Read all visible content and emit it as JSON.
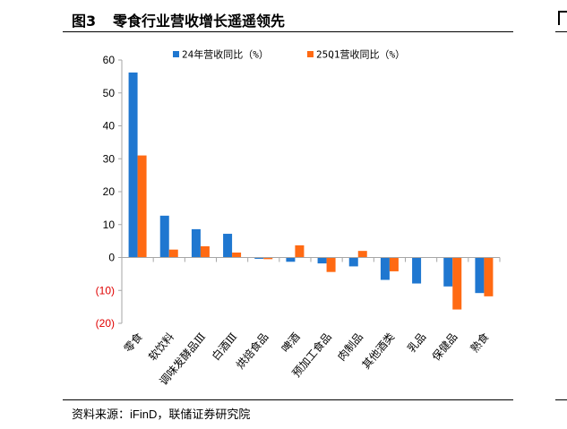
{
  "figure": {
    "number": "图3",
    "title": "零食行业营收增长遥遥领先",
    "source_prefix": "资料来源：",
    "source_latin": "iFinD",
    "source_suffix": "，联储证券研究院"
  },
  "colors": {
    "series1": "#1F77D0",
    "series2": "#FF6A13",
    "negative_tick": "#E00000",
    "axis": "#A6A6A6"
  },
  "chart_data": {
    "type": "bar",
    "categories": [
      "零食",
      "软饮料",
      "调味发酵品Ⅲ",
      "白酒Ⅲ",
      "烘焙食品",
      "啤酒",
      "预加工食品",
      "肉制品",
      "其他酒类",
      "乳品",
      "保健品",
      "熟食"
    ],
    "series": [
      {
        "name": "24年营收同比（%）",
        "values": [
          56.2,
          12.7,
          8.6,
          7.2,
          -0.4,
          -1.3,
          -1.8,
          -2.7,
          -6.8,
          -7.9,
          -8.8,
          -10.8
        ]
      },
      {
        "name": "25Q1营收同比（%）",
        "values": [
          31.0,
          2.4,
          3.4,
          1.5,
          -0.5,
          3.7,
          -4.4,
          2.0,
          -4.2,
          0,
          -15.8,
          -11.8
        ]
      }
    ],
    "y_ticks": [
      "60",
      "50",
      "40",
      "30",
      "20",
      "10",
      "0",
      "(10)",
      "(20)"
    ],
    "y_tick_values": [
      60,
      50,
      40,
      30,
      20,
      10,
      0,
      -10,
      -20
    ],
    "ylim": [
      -20,
      60
    ],
    "legend_position": "top",
    "grid": false
  }
}
